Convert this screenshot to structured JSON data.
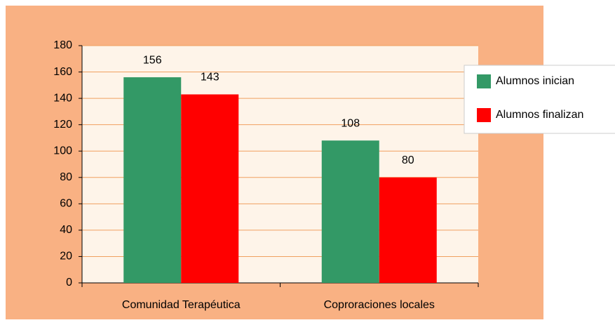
{
  "chart_data": {
    "type": "bar",
    "categories": [
      "Comunidad Terapéutica",
      "Coproraciones locales"
    ],
    "series": [
      {
        "name": "Alumnos inician",
        "color": "#339966",
        "values": [
          156,
          108
        ]
      },
      {
        "name": "Alumnos finalizan",
        "color": "#ff0000",
        "values": [
          143,
          80
        ]
      }
    ],
    "ylim": [
      0,
      180
    ],
    "yticks": [
      0,
      20,
      40,
      60,
      80,
      100,
      120,
      140,
      160,
      180
    ],
    "grid": true,
    "legend": "right"
  }
}
